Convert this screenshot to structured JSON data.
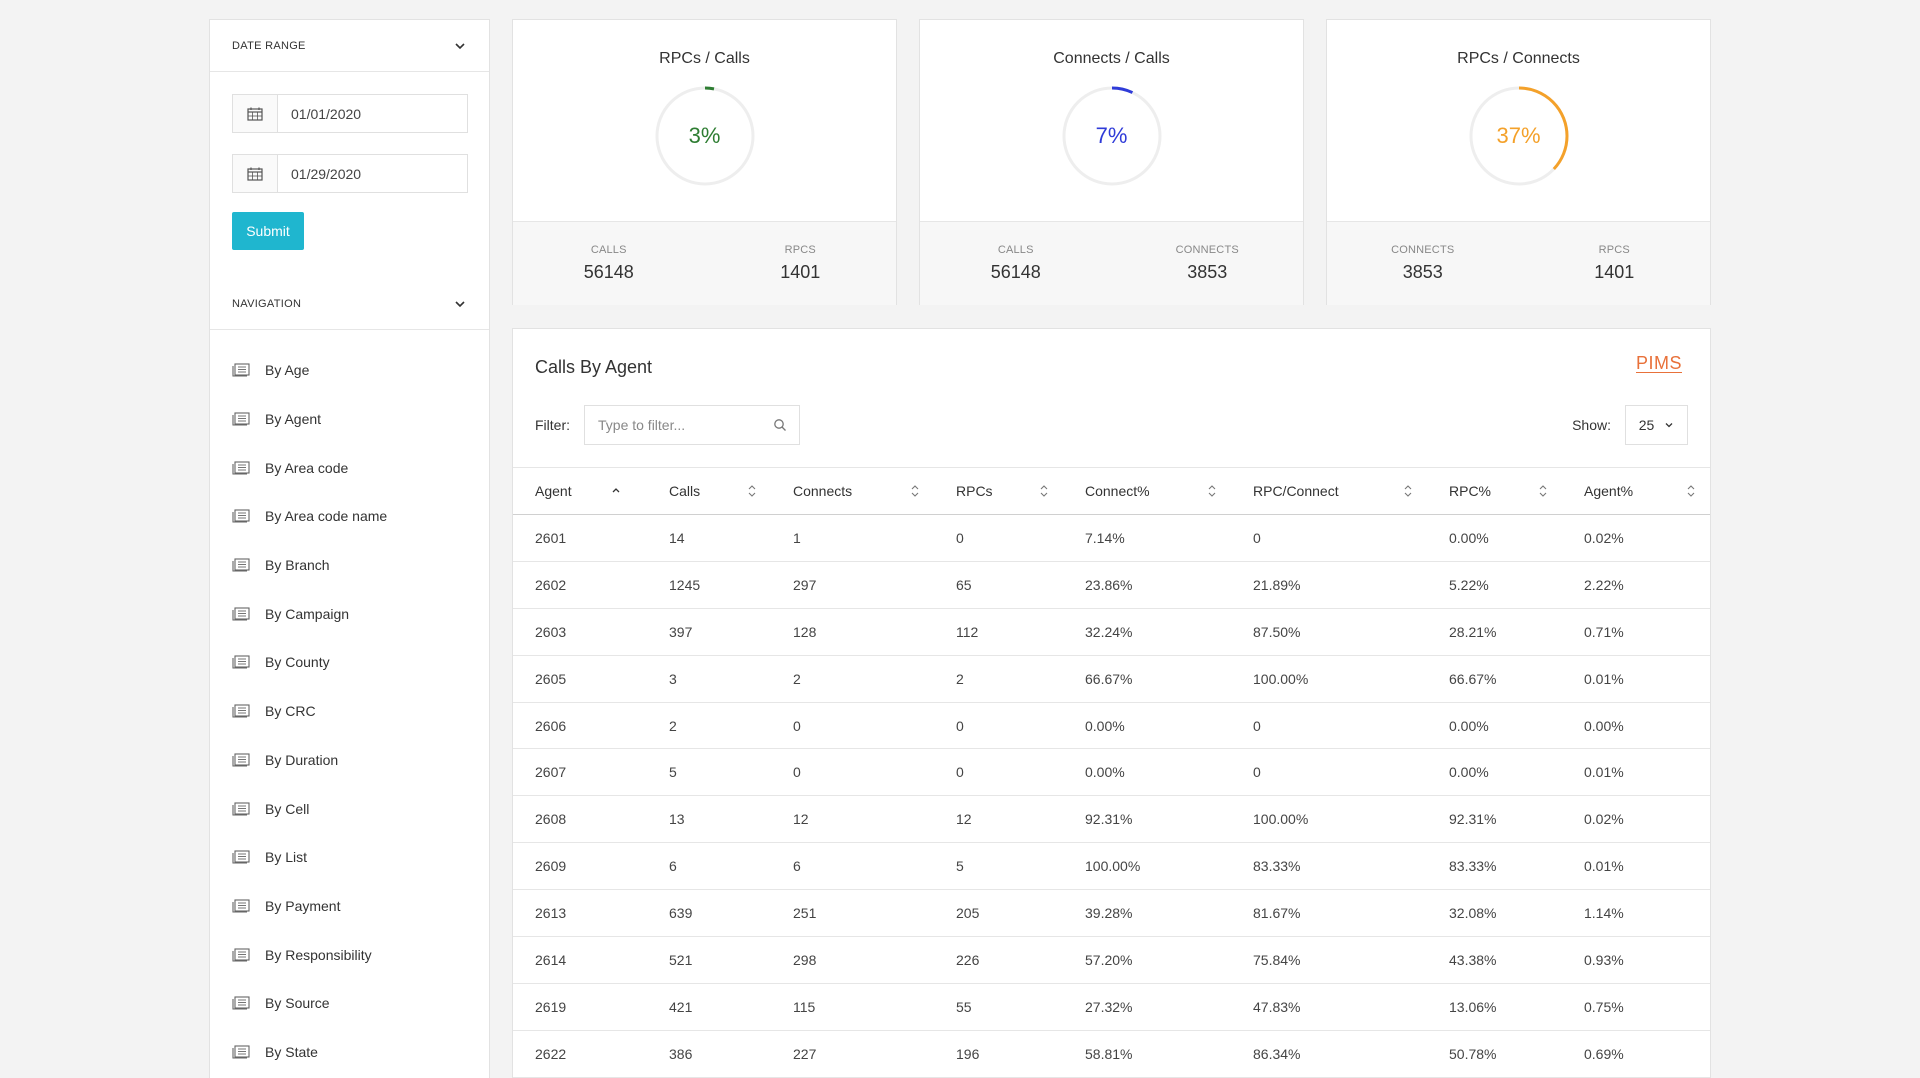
{
  "sidebar": {
    "date_range_label": "DATE RANGE",
    "start_date": "01/01/2020",
    "end_date": "01/29/2020",
    "submit_label": "Submit",
    "navigation_label": "NAVIGATION",
    "nav_items": [
      "By Age",
      "By Agent",
      "By Area code",
      "By Area code name",
      "By Branch",
      "By Campaign",
      "By County",
      "By CRC",
      "By Duration",
      "By Cell",
      "By List",
      "By Payment",
      "By Responsibility",
      "By Source",
      "By State"
    ]
  },
  "cards": [
    {
      "title": "RPCs / Calls",
      "percent_label": "3%",
      "percent": 3,
      "color": "#2e7d32",
      "stat1_label": "CALLS",
      "stat1_value": "56148",
      "stat2_label": "RPCS",
      "stat2_value": "1401"
    },
    {
      "title": "Connects / Calls",
      "percent_label": "7%",
      "percent": 7,
      "color": "#2f3bd8",
      "stat1_label": "CALLS",
      "stat1_value": "56148",
      "stat2_label": "CONNECTS",
      "stat2_value": "3853"
    },
    {
      "title": "RPCs / Connects",
      "percent_label": "37%",
      "percent": 37,
      "color": "#f4a12a",
      "stat1_label": "CONNECTS",
      "stat1_value": "3853",
      "stat2_label": "RPCS",
      "stat2_value": "1401"
    }
  ],
  "table_panel": {
    "title": "Calls By Agent",
    "logo": "PIMS",
    "filter_label": "Filter:",
    "filter_placeholder": "Type to filter...",
    "show_label": "Show:",
    "show_value": "25",
    "columns": [
      "Agent",
      "Calls",
      "Connects",
      "RPCs",
      "Connect%",
      "RPC/Connect",
      "RPC%",
      "Agent%"
    ],
    "rows": [
      [
        "2601",
        "14",
        "1",
        "0",
        "7.14%",
        "0",
        "0.00%",
        "0.02%"
      ],
      [
        "2602",
        "1245",
        "297",
        "65",
        "23.86%",
        "21.89%",
        "5.22%",
        "2.22%"
      ],
      [
        "2603",
        "397",
        "128",
        "112",
        "32.24%",
        "87.50%",
        "28.21%",
        "0.71%"
      ],
      [
        "2605",
        "3",
        "2",
        "2",
        "66.67%",
        "100.00%",
        "66.67%",
        "0.01%"
      ],
      [
        "2606",
        "2",
        "0",
        "0",
        "0.00%",
        "0",
        "0.00%",
        "0.00%"
      ],
      [
        "2607",
        "5",
        "0",
        "0",
        "0.00%",
        "0",
        "0.00%",
        "0.01%"
      ],
      [
        "2608",
        "13",
        "12",
        "12",
        "92.31%",
        "100.00%",
        "92.31%",
        "0.02%"
      ],
      [
        "2609",
        "6",
        "6",
        "5",
        "100.00%",
        "83.33%",
        "83.33%",
        "0.01%"
      ],
      [
        "2613",
        "639",
        "251",
        "205",
        "39.28%",
        "81.67%",
        "32.08%",
        "1.14%"
      ],
      [
        "2614",
        "521",
        "298",
        "226",
        "57.20%",
        "75.84%",
        "43.38%",
        "0.93%"
      ],
      [
        "2619",
        "421",
        "115",
        "55",
        "27.32%",
        "47.83%",
        "13.06%",
        "0.75%"
      ],
      [
        "2622",
        "386",
        "227",
        "196",
        "58.81%",
        "86.34%",
        "50.78%",
        "0.69%"
      ]
    ]
  }
}
